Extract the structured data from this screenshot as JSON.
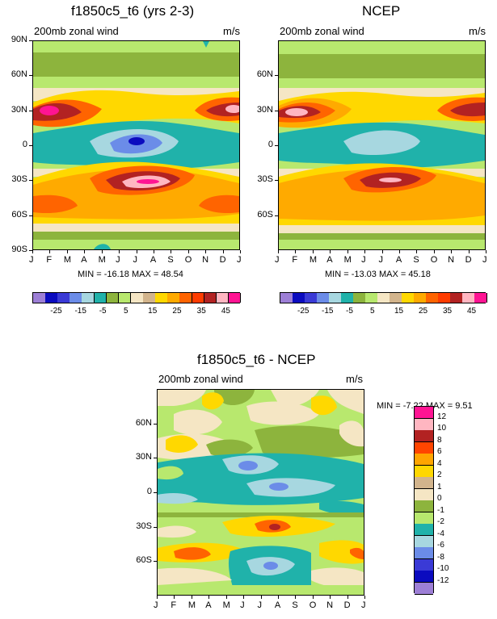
{
  "chart_data": [
    {
      "type": "heatmap",
      "title": "f1850c5_t6 (yrs 2-3)",
      "left_label": "200mb zonal wind",
      "right_label": "m/s",
      "x_ticks": [
        "J",
        "F",
        "M",
        "A",
        "M",
        "J",
        "J",
        "A",
        "S",
        "O",
        "N",
        "D",
        "J"
      ],
      "y_ticks": [
        "90N",
        "60N",
        "30N",
        "0",
        "30S",
        "60S",
        "90S"
      ],
      "ylim": [
        -90,
        90
      ],
      "stats": "MIN = -16.18  MAX =  48.54",
      "colorbar_labels": [
        "-25",
        "-15",
        "-5",
        "5",
        "15",
        "25",
        "35",
        "45"
      ],
      "colorbar_colors": [
        "#9d7fd6",
        "#0b0bbf",
        "#3a3ad6",
        "#6b8ce8",
        "#a7d7e0",
        "#20b2aa",
        "#8db43d",
        "#b8e86e",
        "#f5e6c4",
        "#d2b48c",
        "#ffd800",
        "#ffaa00",
        "#ff6400",
        "#ff3c00",
        "#b22222",
        "#ffb6c1",
        "#ff1493"
      ]
    },
    {
      "type": "heatmap",
      "title": "NCEP",
      "left_label": "200mb zonal wind",
      "right_label": "m/s",
      "x_ticks": [
        "J",
        "F",
        "M",
        "A",
        "M",
        "J",
        "J",
        "A",
        "S",
        "O",
        "N",
        "D",
        "J"
      ],
      "y_ticks": [
        "60N",
        "30N",
        "0",
        "30S",
        "60S"
      ],
      "ylim": [
        -90,
        90
      ],
      "stats": "MIN = -13.03  MAX =  45.18",
      "colorbar_labels": [
        "-25",
        "-15",
        "-5",
        "5",
        "15",
        "25",
        "35",
        "45"
      ],
      "colorbar_colors": [
        "#9d7fd6",
        "#0b0bbf",
        "#3a3ad6",
        "#6b8ce8",
        "#a7d7e0",
        "#20b2aa",
        "#8db43d",
        "#b8e86e",
        "#f5e6c4",
        "#d2b48c",
        "#ffd800",
        "#ffaa00",
        "#ff6400",
        "#ff3c00",
        "#b22222",
        "#ffb6c1",
        "#ff1493"
      ]
    },
    {
      "type": "heatmap",
      "title": "f1850c5_t6 - NCEP",
      "left_label": "200mb zonal wind",
      "right_label": "m/s",
      "x_ticks": [
        "J",
        "F",
        "M",
        "A",
        "M",
        "J",
        "J",
        "A",
        "S",
        "O",
        "N",
        "D",
        "J"
      ],
      "y_ticks": [
        "60N",
        "30N",
        "0",
        "30S",
        "60S"
      ],
      "ylim": [
        -90,
        90
      ],
      "stats": "MIN =  -7.22  MAX =   9.51",
      "colorbar_labels": [
        "12",
        "10",
        "8",
        "6",
        "4",
        "2",
        "1",
        "0",
        "-1",
        "-2",
        "-4",
        "-6",
        "-8",
        "-10",
        "-12"
      ],
      "colorbar_colors": [
        "#ff1493",
        "#ffb6c1",
        "#b22222",
        "#ff4500",
        "#ffa500",
        "#ffd700",
        "#d2b48c",
        "#f5e6c4",
        "#8db43d",
        "#b8e86e",
        "#20b2aa",
        "#a7d7e0",
        "#6b8ce8",
        "#3a3ad6",
        "#0b0bbf",
        "#9d7fd6"
      ]
    }
  ]
}
